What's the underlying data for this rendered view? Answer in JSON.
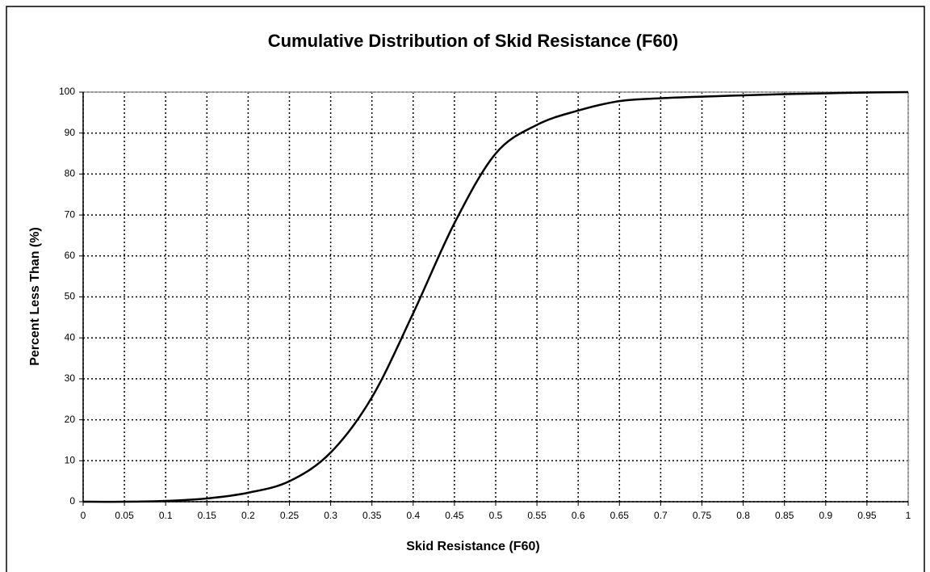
{
  "chart_data": {
    "type": "line",
    "title": "Cumulative Distribution of Skid Resistance (F60)",
    "x_label": "Skid Resistance (F60)",
    "y_label": "Percent Less Than (%)",
    "x": [
      0,
      0.05,
      0.1,
      0.15,
      0.2,
      0.25,
      0.3,
      0.35,
      0.4,
      0.45,
      0.5,
      0.55,
      0.6,
      0.65,
      0.7,
      0.75,
      0.8,
      0.85,
      0.9,
      0.95,
      1
    ],
    "series": [
      {
        "color": "#000000",
        "values": [
          0,
          0,
          0.2,
          0.8,
          2.2,
          5,
          12,
          25.5,
          46,
          68,
          85,
          92,
          95.5,
          97.8,
          98.5,
          98.9,
          99.2,
          99.5,
          99.7,
          99.9,
          100
        ]
      }
    ],
    "xlim": [
      0,
      1
    ],
    "xticks": [
      0,
      0.05,
      0.1,
      0.15,
      0.2,
      0.25,
      0.3,
      0.35,
      0.4,
      0.45,
      0.5,
      0.55,
      0.6,
      0.65,
      0.7,
      0.75,
      0.8,
      0.85,
      0.9,
      0.95,
      1
    ],
    "ylim": [
      0,
      100
    ],
    "yticks": [
      0,
      10,
      20,
      30,
      40,
      50,
      60,
      70,
      80,
      90,
      100
    ],
    "grid": true
  }
}
